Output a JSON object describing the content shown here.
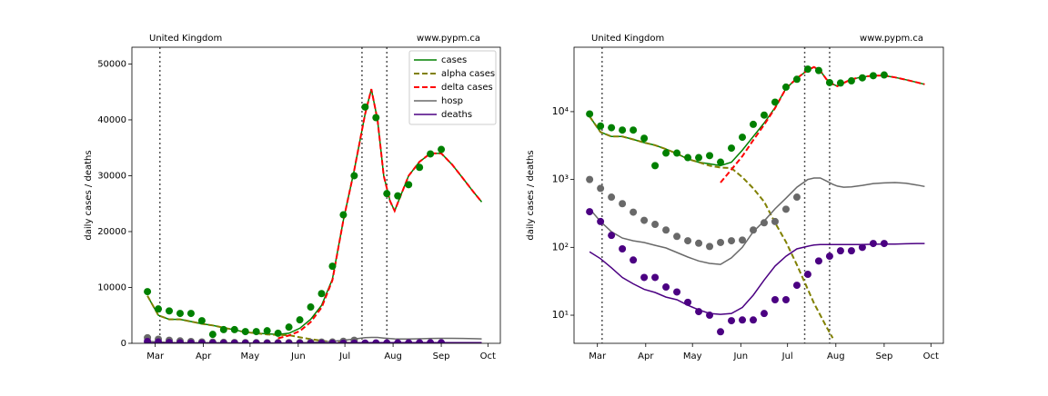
{
  "chart_data": [
    {
      "type": "line",
      "title": "United Kingdom",
      "source": "www.pypm.ca",
      "ylabel": "daily cases / deaths",
      "xlim": [
        45,
        282
      ],
      "xticks": [
        {
          "value": 60,
          "label": "Mar"
        },
        {
          "value": 91,
          "label": "Apr"
        },
        {
          "value": 121,
          "label": "May"
        },
        {
          "value": 152,
          "label": "Jun"
        },
        {
          "value": 182,
          "label": "Jul"
        },
        {
          "value": 213,
          "label": "Aug"
        },
        {
          "value": 244,
          "label": "Sep"
        },
        {
          "value": 274,
          "label": "Oct"
        }
      ],
      "ylim": [
        0,
        53000
      ],
      "yticks": [
        0,
        10000,
        20000,
        30000,
        40000,
        50000
      ],
      "yscale": "linear",
      "vlines": [
        63,
        193,
        209
      ],
      "legend": "upper right",
      "x": [
        55,
        62,
        69,
        76,
        83,
        90,
        97,
        104,
        111,
        118,
        125,
        132,
        139,
        146,
        153,
        160,
        167,
        174,
        181,
        188,
        195,
        199,
        203,
        207,
        211,
        214,
        218,
        223,
        230,
        237,
        244,
        251,
        258,
        265,
        270
      ],
      "series": [
        {
          "name": "cases",
          "color": "#008000",
          "dash": false,
          "values": [
            8500,
            5000,
            4300,
            4300,
            3900,
            3500,
            3200,
            2800,
            2400,
            2000,
            1800,
            1700,
            1600,
            1800,
            2700,
            4300,
            6800,
            11500,
            22000,
            31000,
            41000,
            45500,
            40000,
            30000,
            25500,
            23700,
            26500,
            30000,
            32500,
            34000,
            34000,
            32000,
            29500,
            27000,
            25300
          ]
        },
        {
          "name": "alpha cases",
          "color": "#808000",
          "dash": true,
          "values": [
            8500,
            5000,
            4300,
            4300,
            3900,
            3500,
            3200,
            2800,
            2400,
            2000,
            1800,
            1600,
            1500,
            1470,
            1080,
            740,
            470,
            230,
            120,
            55,
            24,
            15,
            10,
            6.7,
            4.6,
            null,
            null,
            null,
            null,
            null,
            null,
            null,
            null,
            null,
            null
          ]
        },
        {
          "name": "delta cases",
          "color": "#ff0000",
          "dash": true,
          "values": [
            null,
            null,
            null,
            null,
            null,
            null,
            null,
            null,
            null,
            null,
            null,
            null,
            900,
            1400,
            2200,
            3800,
            6400,
            11300,
            22000,
            31000,
            41000,
            45500,
            40000,
            30000,
            25500,
            23700,
            26500,
            30000,
            32500,
            34000,
            34000,
            32000,
            29500,
            27000,
            25300
          ]
        },
        {
          "name": "hosp",
          "color": "#696969",
          "dash": false,
          "values": [
            370,
            240,
            170,
            137,
            125,
            118,
            107,
            98,
            84,
            72,
            63,
            58,
            56,
            70,
            100,
            170,
            245,
            370,
            530,
            770,
            1000,
            1050,
            1050,
            950,
            850,
            800,
            770,
            780,
            820,
            870,
            890,
            900,
            880,
            830,
            790
          ]
        },
        {
          "name": "deaths",
          "color": "#4b0082",
          "dash": false,
          "values": [
            86,
            68,
            50,
            36,
            29,
            24,
            21.6,
            18.5,
            16.9,
            14,
            12,
            10.6,
            10.3,
            10.6,
            13,
            19.7,
            33,
            53,
            74,
            95,
            104,
            108,
            110,
            110,
            110,
            110,
            110,
            110,
            110,
            111,
            112,
            112,
            113,
            114,
            114
          ]
        }
      ],
      "points": [
        {
          "color": "#008000",
          "x": [
            55,
            62,
            69,
            76,
            83,
            90,
            97,
            104,
            111,
            118,
            125,
            132,
            139,
            146,
            153,
            160,
            167,
            174,
            181,
            188,
            195,
            202,
            209,
            216,
            223,
            230,
            237,
            244
          ],
          "values": [
            9250,
            6150,
            5800,
            5350,
            5350,
            4050,
            1600,
            2450,
            2450,
            2100,
            2100,
            2250,
            1800,
            2900,
            4200,
            6500,
            8900,
            13800,
            23000,
            30000,
            42300,
            40400,
            26800,
            26400,
            28400,
            31500,
            33900,
            34700
          ]
        },
        {
          "color": "#696969",
          "x": [
            55,
            62,
            69,
            76,
            83,
            90,
            97,
            104,
            111,
            118,
            125,
            132,
            139,
            146,
            153,
            160,
            167,
            174,
            181,
            188
          ],
          "values": [
            1000,
            740,
            550,
            440,
            330,
            250,
            218,
            180,
            145,
            125,
            115,
            103,
            118,
            125,
            128,
            180,
            230,
            240,
            365,
            550
          ]
        },
        {
          "color": "#4b0082",
          "x": [
            55,
            62,
            69,
            76,
            83,
            90,
            97,
            104,
            111,
            118,
            125,
            132,
            139,
            146,
            153,
            160,
            167,
            174,
            181,
            188,
            195,
            202,
            209,
            216,
            223,
            230,
            237,
            244
          ],
          "values": [
            335,
            240,
            150,
            95,
            65,
            36,
            36,
            26,
            22,
            15.5,
            11.3,
            10,
            5.7,
            8.3,
            8.5,
            8.5,
            10.6,
            16.9,
            16.9,
            27.6,
            40,
            63,
            74,
            89,
            89,
            100,
            114,
            114
          ]
        }
      ]
    },
    {
      "type": "line",
      "title": "United Kingdom",
      "source": "www.pypm.ca",
      "ylabel": "daily cases / deaths",
      "xlim": [
        45,
        282
      ],
      "xticks": [
        {
          "value": 60,
          "label": "Mar"
        },
        {
          "value": 91,
          "label": "Apr"
        },
        {
          "value": 121,
          "label": "May"
        },
        {
          "value": 152,
          "label": "Jun"
        },
        {
          "value": 182,
          "label": "Jul"
        },
        {
          "value": 213,
          "label": "Aug"
        },
        {
          "value": 244,
          "label": "Sep"
        },
        {
          "value": 274,
          "label": "Oct"
        }
      ],
      "ylim": [
        3.85,
        89000
      ],
      "yticks": [
        {
          "value": 10,
          "label": "10¹"
        },
        {
          "value": 100,
          "label": "10²"
        },
        {
          "value": 1000,
          "label": "10³"
        },
        {
          "value": 10000,
          "label": "10⁴"
        }
      ],
      "yscale": "log",
      "vlines": [
        63,
        193,
        209
      ],
      "x": [
        55,
        62,
        69,
        76,
        83,
        90,
        97,
        104,
        111,
        118,
        125,
        132,
        139,
        146,
        153,
        160,
        167,
        174,
        181,
        188,
        195,
        199,
        203,
        207,
        211,
        214,
        218,
        223,
        230,
        237,
        244,
        251,
        258,
        265,
        270
      ],
      "series": [
        {
          "color": "#008000",
          "dash": false,
          "values": [
            8500,
            5000,
            4300,
            4300,
            3900,
            3500,
            3200,
            2800,
            2400,
            2000,
            1800,
            1700,
            1600,
            1800,
            2700,
            4300,
            6800,
            11500,
            22000,
            31000,
            41000,
            45500,
            40000,
            30000,
            25500,
            23700,
            26500,
            30000,
            32500,
            34000,
            34000,
            32000,
            29500,
            27000,
            25300
          ]
        },
        {
          "color": "#808000",
          "dash": true,
          "values": [
            8500,
            5000,
            4300,
            4300,
            3900,
            3500,
            3200,
            2800,
            2400,
            2000,
            1800,
            1600,
            1500,
            1470,
            1080,
            740,
            470,
            230,
            120,
            55,
            24,
            15,
            10,
            6.7,
            4.6,
            null,
            null,
            null,
            null,
            null,
            null,
            null,
            null,
            null,
            null
          ]
        },
        {
          "color": "#ff0000",
          "dash": true,
          "values": [
            null,
            null,
            null,
            null,
            null,
            null,
            null,
            null,
            null,
            null,
            null,
            null,
            900,
            1400,
            2200,
            3800,
            6400,
            11300,
            22000,
            31000,
            41000,
            45500,
            40000,
            30000,
            25500,
            23700,
            26500,
            30000,
            32500,
            34000,
            34000,
            32000,
            29500,
            27000,
            25300
          ]
        },
        {
          "color": "#696969",
          "dash": false,
          "values": [
            370,
            240,
            170,
            137,
            125,
            118,
            107,
            98,
            84,
            72,
            63,
            58,
            56,
            70,
            100,
            170,
            245,
            370,
            530,
            770,
            1000,
            1050,
            1050,
            950,
            850,
            800,
            770,
            780,
            820,
            870,
            890,
            900,
            880,
            830,
            790
          ]
        },
        {
          "color": "#4b0082",
          "dash": false,
          "values": [
            86,
            68,
            50,
            36,
            29,
            24,
            21.6,
            18.5,
            16.9,
            14,
            12,
            10.6,
            10.3,
            10.6,
            13,
            19.7,
            33,
            53,
            74,
            95,
            104,
            108,
            110,
            110,
            110,
            110,
            110,
            110,
            110,
            111,
            112,
            112,
            113,
            114,
            114
          ]
        }
      ],
      "points": [
        {
          "color": "#008000",
          "x": [
            55,
            62,
            69,
            76,
            83,
            90,
            97,
            104,
            111,
            118,
            125,
            132,
            139,
            146,
            153,
            160,
            167,
            174,
            181,
            188,
            195,
            202,
            209,
            216,
            223,
            230,
            237,
            244
          ],
          "values": [
            9250,
            6150,
            5800,
            5350,
            5350,
            4050,
            1600,
            2450,
            2450,
            2100,
            2100,
            2250,
            1800,
            2900,
            4200,
            6500,
            8900,
            13800,
            23000,
            30000,
            42300,
            40400,
            26800,
            26400,
            28400,
            31500,
            33900,
            34700
          ]
        },
        {
          "color": "#696969",
          "x": [
            55,
            62,
            69,
            76,
            83,
            90,
            97,
            104,
            111,
            118,
            125,
            132,
            139,
            146,
            153,
            160,
            167,
            174,
            181,
            188
          ],
          "values": [
            1000,
            740,
            550,
            440,
            330,
            250,
            218,
            180,
            145,
            125,
            115,
            103,
            118,
            125,
            128,
            180,
            230,
            240,
            365,
            550
          ]
        },
        {
          "color": "#4b0082",
          "x": [
            55,
            62,
            69,
            76,
            83,
            90,
            97,
            104,
            111,
            118,
            125,
            132,
            139,
            146,
            153,
            160,
            167,
            174,
            181,
            188,
            195,
            202,
            209,
            216,
            223,
            230,
            237,
            244
          ],
          "values": [
            335,
            240,
            150,
            95,
            65,
            36,
            36,
            26,
            22,
            15.5,
            11.3,
            10,
            5.7,
            8.3,
            8.5,
            8.5,
            10.6,
            16.9,
            16.9,
            27.6,
            40,
            63,
            74,
            89,
            89,
            100,
            114,
            114
          ]
        }
      ]
    }
  ]
}
